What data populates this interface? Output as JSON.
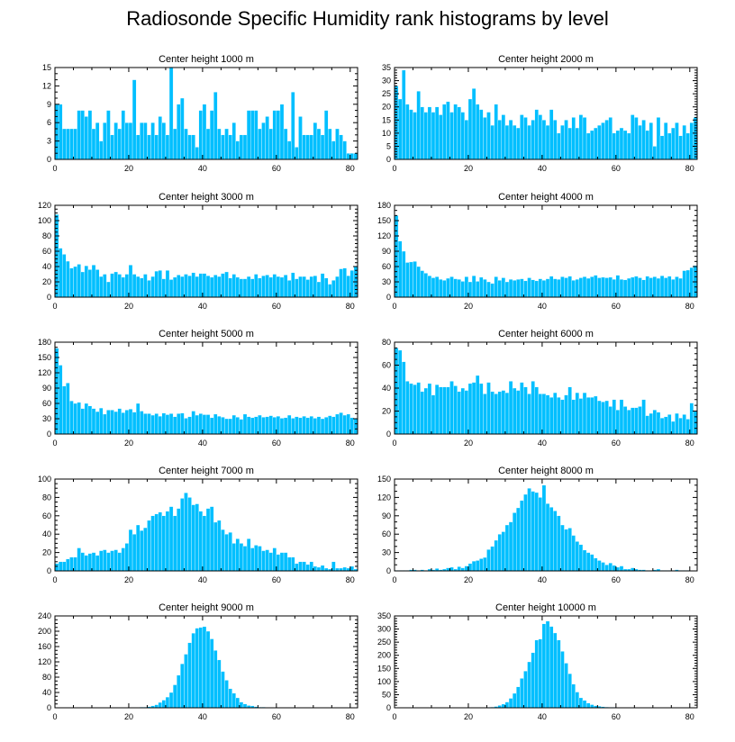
{
  "figure_title": "Radiosonde Specific Humidity rank histograms by level",
  "bar_color": "#00BFFF",
  "chart_data": [
    {
      "type": "bar",
      "title": "Center height 1000 m",
      "xlim": [
        0,
        82
      ],
      "ylim": [
        0,
        15
      ],
      "x_ticks": [
        0,
        20,
        40,
        60,
        80
      ],
      "y_ticks": [
        0,
        3,
        6,
        9,
        12,
        15
      ],
      "values": [
        9,
        9,
        5,
        5,
        5,
        5,
        8,
        8,
        7,
        8,
        5,
        6,
        3,
        6,
        8,
        4,
        6,
        5,
        8,
        6,
        6,
        13,
        4,
        6,
        6,
        4,
        6,
        4,
        7,
        6,
        4,
        15,
        5,
        9,
        10,
        5,
        4,
        4,
        2,
        8,
        9,
        5,
        8,
        11,
        5,
        4,
        5,
        4,
        6,
        3,
        4,
        4,
        8,
        8,
        8,
        5,
        6,
        7,
        5,
        8,
        8,
        9,
        5,
        3,
        11,
        2,
        7,
        4,
        4,
        4,
        6,
        5,
        4,
        8,
        5,
        3,
        5,
        4,
        3,
        1,
        1,
        1
      ]
    },
    {
      "type": "bar",
      "title": "Center height 2000 m",
      "xlim": [
        0,
        82
      ],
      "ylim": [
        0,
        35
      ],
      "x_ticks": [
        0,
        20,
        40,
        60,
        80
      ],
      "y_ticks": [
        0,
        5,
        10,
        15,
        20,
        25,
        30,
        35
      ],
      "values": [
        28,
        23,
        34,
        21,
        19,
        18,
        26,
        20,
        18,
        20,
        18,
        20,
        17,
        21,
        22,
        18,
        21,
        20,
        18,
        15,
        23,
        27,
        21,
        19,
        16,
        18,
        13,
        21,
        15,
        17,
        13,
        15,
        13,
        12,
        17,
        16,
        13,
        15,
        19,
        17,
        15,
        13,
        19,
        15,
        10,
        13,
        15,
        12,
        16,
        12,
        17,
        16,
        10,
        11,
        12,
        13,
        14,
        15,
        16,
        10,
        11,
        12,
        11,
        10,
        17,
        16,
        13,
        15,
        11,
        14,
        5,
        16,
        9,
        14,
        10,
        12,
        14,
        9,
        13,
        10,
        14,
        16
      ]
    },
    {
      "type": "bar",
      "title": "Center height 3000 m",
      "xlim": [
        0,
        82
      ],
      "ylim": [
        0,
        120
      ],
      "x_ticks": [
        0,
        20,
        40,
        60,
        80
      ],
      "y_ticks": [
        0,
        20,
        40,
        60,
        80,
        100,
        120
      ],
      "values": [
        108,
        64,
        56,
        47,
        38,
        40,
        43,
        33,
        41,
        36,
        42,
        36,
        27,
        30,
        20,
        31,
        33,
        30,
        26,
        30,
        42,
        30,
        27,
        25,
        30,
        22,
        27,
        34,
        35,
        24,
        35,
        23,
        26,
        29,
        27,
        30,
        28,
        32,
        27,
        31,
        31,
        28,
        26,
        29,
        27,
        31,
        33,
        25,
        30,
        26,
        24,
        24,
        27,
        24,
        30,
        25,
        28,
        29,
        26,
        30,
        27,
        26,
        29,
        22,
        32,
        24,
        27,
        27,
        23,
        27,
        28,
        20,
        31,
        25,
        17,
        22,
        27,
        37,
        38,
        28,
        35,
        40
      ]
    },
    {
      "type": "bar",
      "title": "Center height 4000 m",
      "xlim": [
        0,
        82
      ],
      "ylim": [
        0,
        180
      ],
      "x_ticks": [
        0,
        20,
        40,
        60,
        80
      ],
      "y_ticks": [
        0,
        30,
        60,
        90,
        120,
        150,
        180
      ],
      "values": [
        160,
        110,
        90,
        68,
        69,
        70,
        60,
        52,
        47,
        42,
        38,
        40,
        35,
        33,
        37,
        40,
        36,
        35,
        31,
        40,
        30,
        42,
        31,
        39,
        35,
        30,
        27,
        40,
        33,
        38,
        30,
        35,
        33,
        35,
        36,
        32,
        38,
        34,
        32,
        36,
        33,
        36,
        41,
        36,
        35,
        40,
        38,
        41,
        33,
        35,
        38,
        40,
        37,
        40,
        43,
        38,
        39,
        38,
        39,
        35,
        43,
        35,
        34,
        37,
        39,
        41,
        38,
        34,
        41,
        38,
        40,
        37,
        42,
        38,
        41,
        35,
        40,
        37,
        52,
        53,
        58,
        62
      ]
    },
    {
      "type": "bar",
      "title": "Center height 5000 m",
      "xlim": [
        0,
        82
      ],
      "ylim": [
        0,
        180
      ],
      "x_ticks": [
        0,
        20,
        40,
        60,
        80
      ],
      "y_ticks": [
        0,
        30,
        60,
        90,
        120,
        150,
        180
      ],
      "values": [
        168,
        135,
        94,
        100,
        65,
        60,
        62,
        50,
        60,
        55,
        50,
        44,
        51,
        39,
        47,
        47,
        44,
        50,
        42,
        47,
        49,
        43,
        60,
        45,
        40,
        40,
        37,
        40,
        35,
        41,
        38,
        40,
        34,
        40,
        41,
        31,
        34,
        45,
        37,
        40,
        38,
        38,
        32,
        39,
        35,
        33,
        30,
        30,
        37,
        33,
        29,
        39,
        34,
        32,
        34,
        37,
        33,
        34,
        36,
        33,
        35,
        31,
        32,
        37,
        31,
        34,
        32,
        35,
        32,
        35,
        31,
        34,
        30,
        33,
        36,
        34,
        39,
        42,
        37,
        39,
        32,
        30
      ]
    },
    {
      "type": "bar",
      "title": "Center height 6000 m",
      "xlim": [
        0,
        82
      ],
      "ylim": [
        0,
        80
      ],
      "x_ticks": [
        0,
        20,
        40,
        60,
        80
      ],
      "y_ticks": [
        0,
        20,
        40,
        60,
        80
      ],
      "values": [
        75,
        73,
        63,
        46,
        44,
        43,
        45,
        37,
        40,
        44,
        34,
        43,
        41,
        41,
        41,
        46,
        42,
        37,
        40,
        38,
        44,
        45,
        51,
        44,
        35,
        45,
        37,
        35,
        37,
        38,
        36,
        46,
        40,
        38,
        45,
        41,
        35,
        46,
        41,
        35,
        35,
        34,
        32,
        36,
        32,
        30,
        34,
        41,
        30,
        36,
        31,
        36,
        32,
        32,
        33,
        29,
        28,
        29,
        24,
        30,
        21,
        30,
        24,
        21,
        23,
        23,
        24,
        30,
        16,
        18,
        21,
        19,
        14,
        15,
        17,
        11,
        18,
        14,
        17,
        13,
        27,
        20
      ]
    },
    {
      "type": "bar",
      "title": "Center height 7000 m",
      "xlim": [
        0,
        82
      ],
      "ylim": [
        0,
        100
      ],
      "x_ticks": [
        0,
        20,
        40,
        60,
        80
      ],
      "y_ticks": [
        0,
        20,
        40,
        60,
        80,
        100
      ],
      "values": [
        8,
        10,
        10,
        13,
        15,
        15,
        25,
        20,
        17,
        19,
        20,
        17,
        22,
        23,
        20,
        22,
        23,
        20,
        25,
        30,
        45,
        40,
        50,
        44,
        47,
        55,
        60,
        62,
        64,
        60,
        65,
        70,
        60,
        68,
        79,
        85,
        80,
        72,
        73,
        65,
        60,
        68,
        70,
        53,
        55,
        45,
        40,
        42,
        30,
        35,
        30,
        27,
        35,
        25,
        28,
        27,
        22,
        23,
        20,
        25,
        18,
        20,
        20,
        15,
        15,
        8,
        10,
        10,
        7,
        10,
        5,
        4,
        6,
        3,
        2,
        10,
        3,
        3,
        4,
        3,
        5,
        2
      ]
    },
    {
      "type": "bar",
      "title": "Center height 8000 m",
      "xlim": [
        0,
        82
      ],
      "ylim": [
        0,
        150
      ],
      "x_ticks": [
        0,
        20,
        40,
        60,
        80
      ],
      "y_ticks": [
        0,
        30,
        60,
        90,
        120,
        150
      ],
      "values": [
        1,
        1,
        1,
        1,
        2,
        2,
        1,
        2,
        1,
        3,
        2,
        4,
        2,
        3,
        5,
        6,
        3,
        7,
        5,
        8,
        12,
        16,
        17,
        20,
        22,
        35,
        40,
        50,
        60,
        64,
        75,
        80,
        95,
        103,
        115,
        125,
        135,
        130,
        128,
        120,
        140,
        110,
        104,
        98,
        90,
        75,
        68,
        70,
        58,
        48,
        43,
        34,
        30,
        27,
        21,
        17,
        14,
        10,
        13,
        9,
        6,
        8,
        3,
        3,
        5,
        3,
        2,
        2,
        1,
        1,
        2,
        3,
        1,
        1,
        1,
        1,
        2,
        1,
        1,
        1,
        0,
        0
      ]
    },
    {
      "type": "bar",
      "title": "Center height 9000 m",
      "xlim": [
        0,
        82
      ],
      "ylim": [
        0,
        240
      ],
      "x_ticks": [
        0,
        20,
        40,
        60,
        80
      ],
      "y_ticks": [
        0,
        40,
        80,
        120,
        160,
        200,
        240
      ],
      "values": [
        0,
        0,
        0,
        0,
        0,
        0,
        0,
        0,
        0,
        0,
        0,
        0,
        0,
        0,
        0,
        0,
        0,
        0,
        0,
        0,
        0,
        1,
        1,
        2,
        2,
        3,
        5,
        8,
        14,
        20,
        28,
        40,
        60,
        85,
        115,
        140,
        170,
        195,
        208,
        210,
        212,
        200,
        180,
        150,
        125,
        95,
        72,
        50,
        38,
        26,
        15,
        10,
        6,
        5,
        3,
        2,
        2,
        1,
        1,
        1,
        0,
        0,
        0,
        0,
        0,
        0,
        0,
        0,
        0,
        0,
        0,
        0,
        0,
        0,
        0,
        0,
        0,
        0,
        0,
        0,
        0,
        0
      ]
    },
    {
      "type": "bar",
      "title": "Center height 10000 m",
      "xlim": [
        0,
        82
      ],
      "ylim": [
        0,
        350
      ],
      "x_ticks": [
        0,
        20,
        40,
        60,
        80
      ],
      "y_ticks": [
        0,
        50,
        100,
        150,
        200,
        250,
        300,
        350
      ],
      "values": [
        0,
        0,
        0,
        0,
        0,
        0,
        0,
        0,
        0,
        0,
        0,
        0,
        0,
        0,
        0,
        0,
        0,
        0,
        0,
        0,
        0,
        0,
        0,
        0,
        0,
        2,
        3,
        5,
        9,
        14,
        22,
        36,
        55,
        80,
        112,
        140,
        175,
        210,
        258,
        262,
        320,
        330,
        310,
        285,
        258,
        215,
        170,
        130,
        90,
        60,
        38,
        28,
        18,
        12,
        8,
        6,
        4,
        3,
        2,
        2,
        1,
        1,
        1,
        0,
        0,
        0,
        0,
        0,
        0,
        0,
        0,
        0,
        0,
        0,
        0,
        0,
        0,
        0,
        0,
        0,
        0,
        0
      ]
    }
  ]
}
